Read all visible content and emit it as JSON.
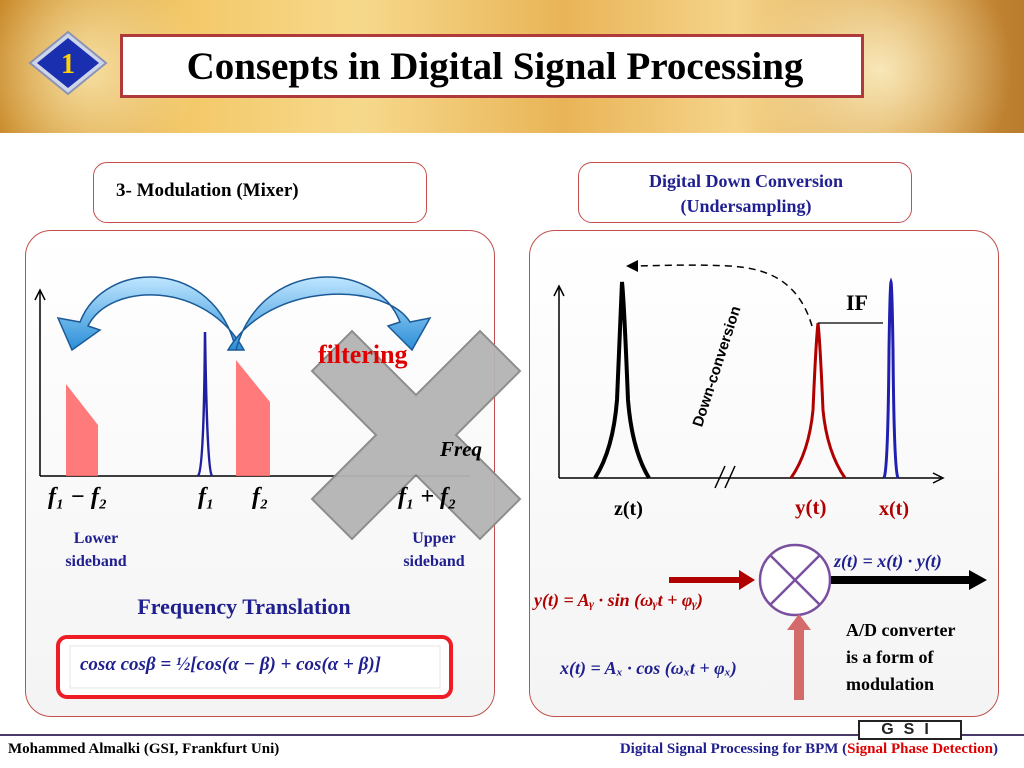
{
  "header": {
    "slide_number": "1",
    "title": "Consepts in Digital Signal Processing"
  },
  "left": {
    "heading": "3- Modulation (Mixer)",
    "overlay_text": "filtering",
    "freq_label": "Freq",
    "tick_labels": [
      "f₁ − f₂",
      "f₁",
      "f₂",
      "f₁ + f₂"
    ],
    "lower_sideband": [
      "Lower",
      "sideband"
    ],
    "upper_sideband": [
      "Upper",
      "sideband"
    ],
    "translation_label": "Frequency Translation",
    "formula": "cosα cosβ = ½[cos(α − β) + cos(α + β)]"
  },
  "right": {
    "heading_line1": "Digital Down Conversion",
    "heading_line2": "(Undersampling)",
    "if_label": "IF",
    "down_conversion_label": "Down-conversion",
    "z_label": "z(t)",
    "y_label": "y(t)",
    "x_label": "x(t)",
    "z_eq": "z(t) = x(t) · y(t)",
    "y_eq": "y(t) = Aᵧ · sin (ωᵧt + φᵧ)",
    "x_eq": "x(t) = Aₓ · cos (ωₓt + φₓ)",
    "ad_note": [
      "A/D converter",
      "is a form of",
      "modulation"
    ]
  },
  "footer": {
    "author": "Mohammed Almalki  (GSI, Frankfurt Uni)",
    "course_prefix": "Digital Signal Processing for BPM (",
    "course_highlight": "Signal Phase Detection",
    "course_suffix": ")",
    "logo_text": "GSI"
  },
  "colors": {
    "accent_red": "#c0504d",
    "title_border": "#b03a3a",
    "navy": "#1f1f8f",
    "spectrum_red": "#ff6b6b",
    "badge_blue": "#1a2fb0"
  }
}
